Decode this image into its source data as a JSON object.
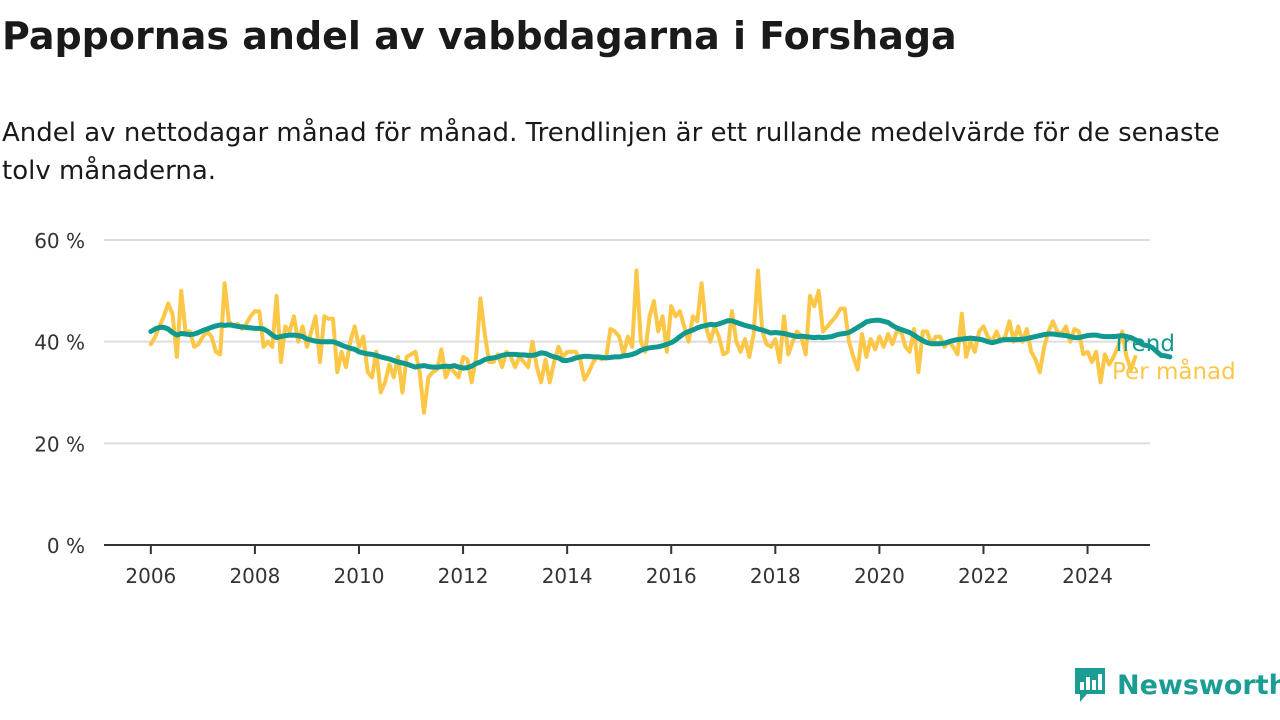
{
  "title": "Pappornas andel av vabbdagarna i Forshaga",
  "subtitle": "Andel av nettodagar månad för månad. Trendlinjen är ett rullande medelvärde för de senaste tolv månaderna.",
  "brand": {
    "name": "Newsworthy",
    "color": "#1c9d94",
    "icon": "newsworthy-chart-logo-icon"
  },
  "colors": {
    "trend": "#12998f",
    "monthly": "#fcc647",
    "grid": "#dddddd",
    "axis": "#333333"
  },
  "chart_data": {
    "type": "line",
    "title": "Pappornas andel av vabbdagarna i Forshaga",
    "xlabel": "",
    "ylabel": "",
    "xlim": [
      2005.1,
      2025.2
    ],
    "ylim": [
      0,
      60
    ],
    "x_ticks": [
      {
        "value": 2006,
        "label": "2006"
      },
      {
        "value": 2008,
        "label": "2008"
      },
      {
        "value": 2010,
        "label": "2010"
      },
      {
        "value": 2012,
        "label": "2012"
      },
      {
        "value": 2014,
        "label": "2014"
      },
      {
        "value": 2016,
        "label": "2016"
      },
      {
        "value": 2018,
        "label": "2018"
      },
      {
        "value": 2020,
        "label": "2020"
      },
      {
        "value": 2022,
        "label": "2022"
      },
      {
        "value": 2024,
        "label": "2024"
      }
    ],
    "y_ticks": [
      {
        "value": 0,
        "label": "0 %"
      },
      {
        "value": 20,
        "label": "20 %"
      },
      {
        "value": 40,
        "label": "40 %"
      },
      {
        "value": 60,
        "label": "60 %"
      }
    ],
    "grid": true,
    "legend": "inline-right",
    "x_start": "2006-01",
    "x_step": "1 month",
    "series": [
      {
        "name": "Per månad",
        "color": "#fcc647",
        "values": [
          39.5,
          41,
          43,
          45,
          47.5,
          45.5,
          37,
          50,
          42,
          42,
          39,
          39.5,
          41,
          42,
          41,
          38,
          37.5,
          51.5,
          44,
          43,
          43.5,
          42.5,
          43.5,
          45,
          46,
          46,
          39,
          40,
          39,
          49,
          36,
          43,
          42,
          45,
          40,
          43,
          39,
          42,
          45,
          36,
          45,
          44.5,
          44.5,
          34,
          38,
          35,
          40,
          43,
          39,
          41,
          34,
          33,
          38,
          30,
          32,
          35.5,
          33,
          37,
          30,
          37,
          37.5,
          38,
          34,
          26,
          33,
          34,
          34.5,
          38.5,
          33,
          35,
          34,
          33,
          37,
          36.5,
          32,
          37,
          48.5,
          41.5,
          36,
          36,
          37.5,
          35,
          38,
          37,
          35,
          37,
          36,
          35,
          40,
          35,
          32,
          36.5,
          32,
          36,
          39,
          37,
          38,
          38,
          38,
          36.5,
          32.5,
          34,
          36,
          37,
          36.5,
          37,
          42.5,
          42,
          41,
          37.5,
          41,
          39,
          54,
          40,
          38,
          45,
          48,
          42,
          45,
          38,
          47,
          45,
          46,
          43,
          40,
          45,
          44,
          51.5,
          43,
          40,
          43,
          41,
          37.5,
          38,
          46,
          40,
          38,
          40.5,
          37,
          41.5,
          54,
          42,
          39.5,
          39,
          40.5,
          36,
          45,
          37.5,
          40,
          42,
          41,
          37.5,
          49,
          47,
          50,
          42,
          43,
          44,
          45,
          46.5,
          46.5,
          40,
          37,
          34.5,
          41.5,
          37,
          40.5,
          38.5,
          41,
          39,
          41.5,
          39.5,
          42,
          42,
          39,
          38,
          42.5,
          34,
          42,
          42,
          39.5,
          41,
          41,
          39,
          40,
          39,
          37.5,
          45.5,
          37,
          40,
          38,
          42,
          43,
          41,
          40,
          42,
          40,
          41,
          44,
          40,
          43,
          40,
          42.5,
          38,
          36.5,
          34,
          39,
          42,
          44,
          42,
          41.5,
          43,
          40,
          42.5,
          42,
          37.5,
          38,
          36,
          38,
          32,
          37.5,
          35.5,
          37,
          39,
          42,
          37,
          34.5,
          37
        ]
      },
      {
        "name": "Trend",
        "color": "#12998f",
        "values": [
          42,
          42.5,
          42.8,
          42.8,
          42.5,
          41.8,
          41.3,
          41.6,
          41.5,
          41.4,
          41.5,
          41.8,
          42.2,
          42.5,
          42.8,
          43.1,
          43.3,
          43.2,
          43.3,
          43.2,
          43,
          42.9,
          42.8,
          42.7,
          42.6,
          42.6,
          42.5,
          42,
          41.3,
          40.8,
          41,
          41.2,
          41.3,
          41.3,
          41.2,
          41,
          40.5,
          40.3,
          40.1,
          40,
          40,
          40,
          40,
          39.7,
          39.3,
          39,
          38.7,
          38.5,
          38,
          37.8,
          37.6,
          37.5,
          37.3,
          37,
          36.8,
          36.6,
          36.3,
          36,
          35.8,
          35.6,
          35.3,
          35,
          35.2,
          35.3,
          35.1,
          35,
          35,
          35.1,
          35.2,
          35.1,
          35.3,
          35,
          34.8,
          34.9,
          35.2,
          35.7,
          36,
          36.5,
          36.7,
          36.8,
          37,
          37.3,
          37.5,
          37.5,
          37.5,
          37.4,
          37.4,
          37.3,
          37.3,
          37.5,
          37.8,
          37.7,
          37.3,
          37,
          36.8,
          36.3,
          36.3,
          36.5,
          36.8,
          37,
          37.1,
          37.1,
          37,
          37,
          36.9,
          36.8,
          36.9,
          37,
          37,
          37.2,
          37.3,
          37.5,
          37.8,
          38.3,
          38.6,
          38.8,
          38.9,
          39,
          39.2,
          39.5,
          39.8,
          40.3,
          41,
          41.6,
          42,
          42.3,
          42.7,
          43,
          43.2,
          43.4,
          43.3,
          43.5,
          43.8,
          44.1,
          44.1,
          43.8,
          43.5,
          43.2,
          43,
          42.8,
          42.5,
          42.3,
          42,
          41.7,
          41.8,
          41.7,
          41.6,
          41.4,
          41.2,
          41,
          41.1,
          41,
          40.9,
          40.8,
          40.9,
          40.8,
          40.9,
          41,
          41.3,
          41.5,
          41.6,
          41.8,
          42.3,
          42.8,
          43.3,
          43.9,
          44.1,
          44.2,
          44.2,
          44,
          43.8,
          43.2,
          42.7,
          42.4,
          42.1,
          41.8,
          41.3,
          40.7,
          40.2,
          39.8,
          39.6,
          39.6,
          39.6,
          39.7,
          40,
          40.2,
          40.4,
          40.5,
          40.6,
          40.7,
          40.6,
          40.5,
          40.3,
          40,
          39.8,
          40,
          40.3,
          40.4,
          40.4,
          40.4,
          40.4,
          40.5,
          40.6,
          40.8,
          41,
          41.2,
          41.4,
          41.5,
          41.5,
          41.4,
          41.3,
          41.2,
          41,
          40.8,
          40.8,
          41,
          41.2,
          41.3,
          41.3,
          41.1,
          41,
          41,
          41,
          41.1,
          41.2,
          41,
          40.8,
          40.4,
          39.8,
          39.3,
          39.2,
          38.8,
          38,
          37.3,
          37.2,
          37
        ]
      }
    ]
  }
}
